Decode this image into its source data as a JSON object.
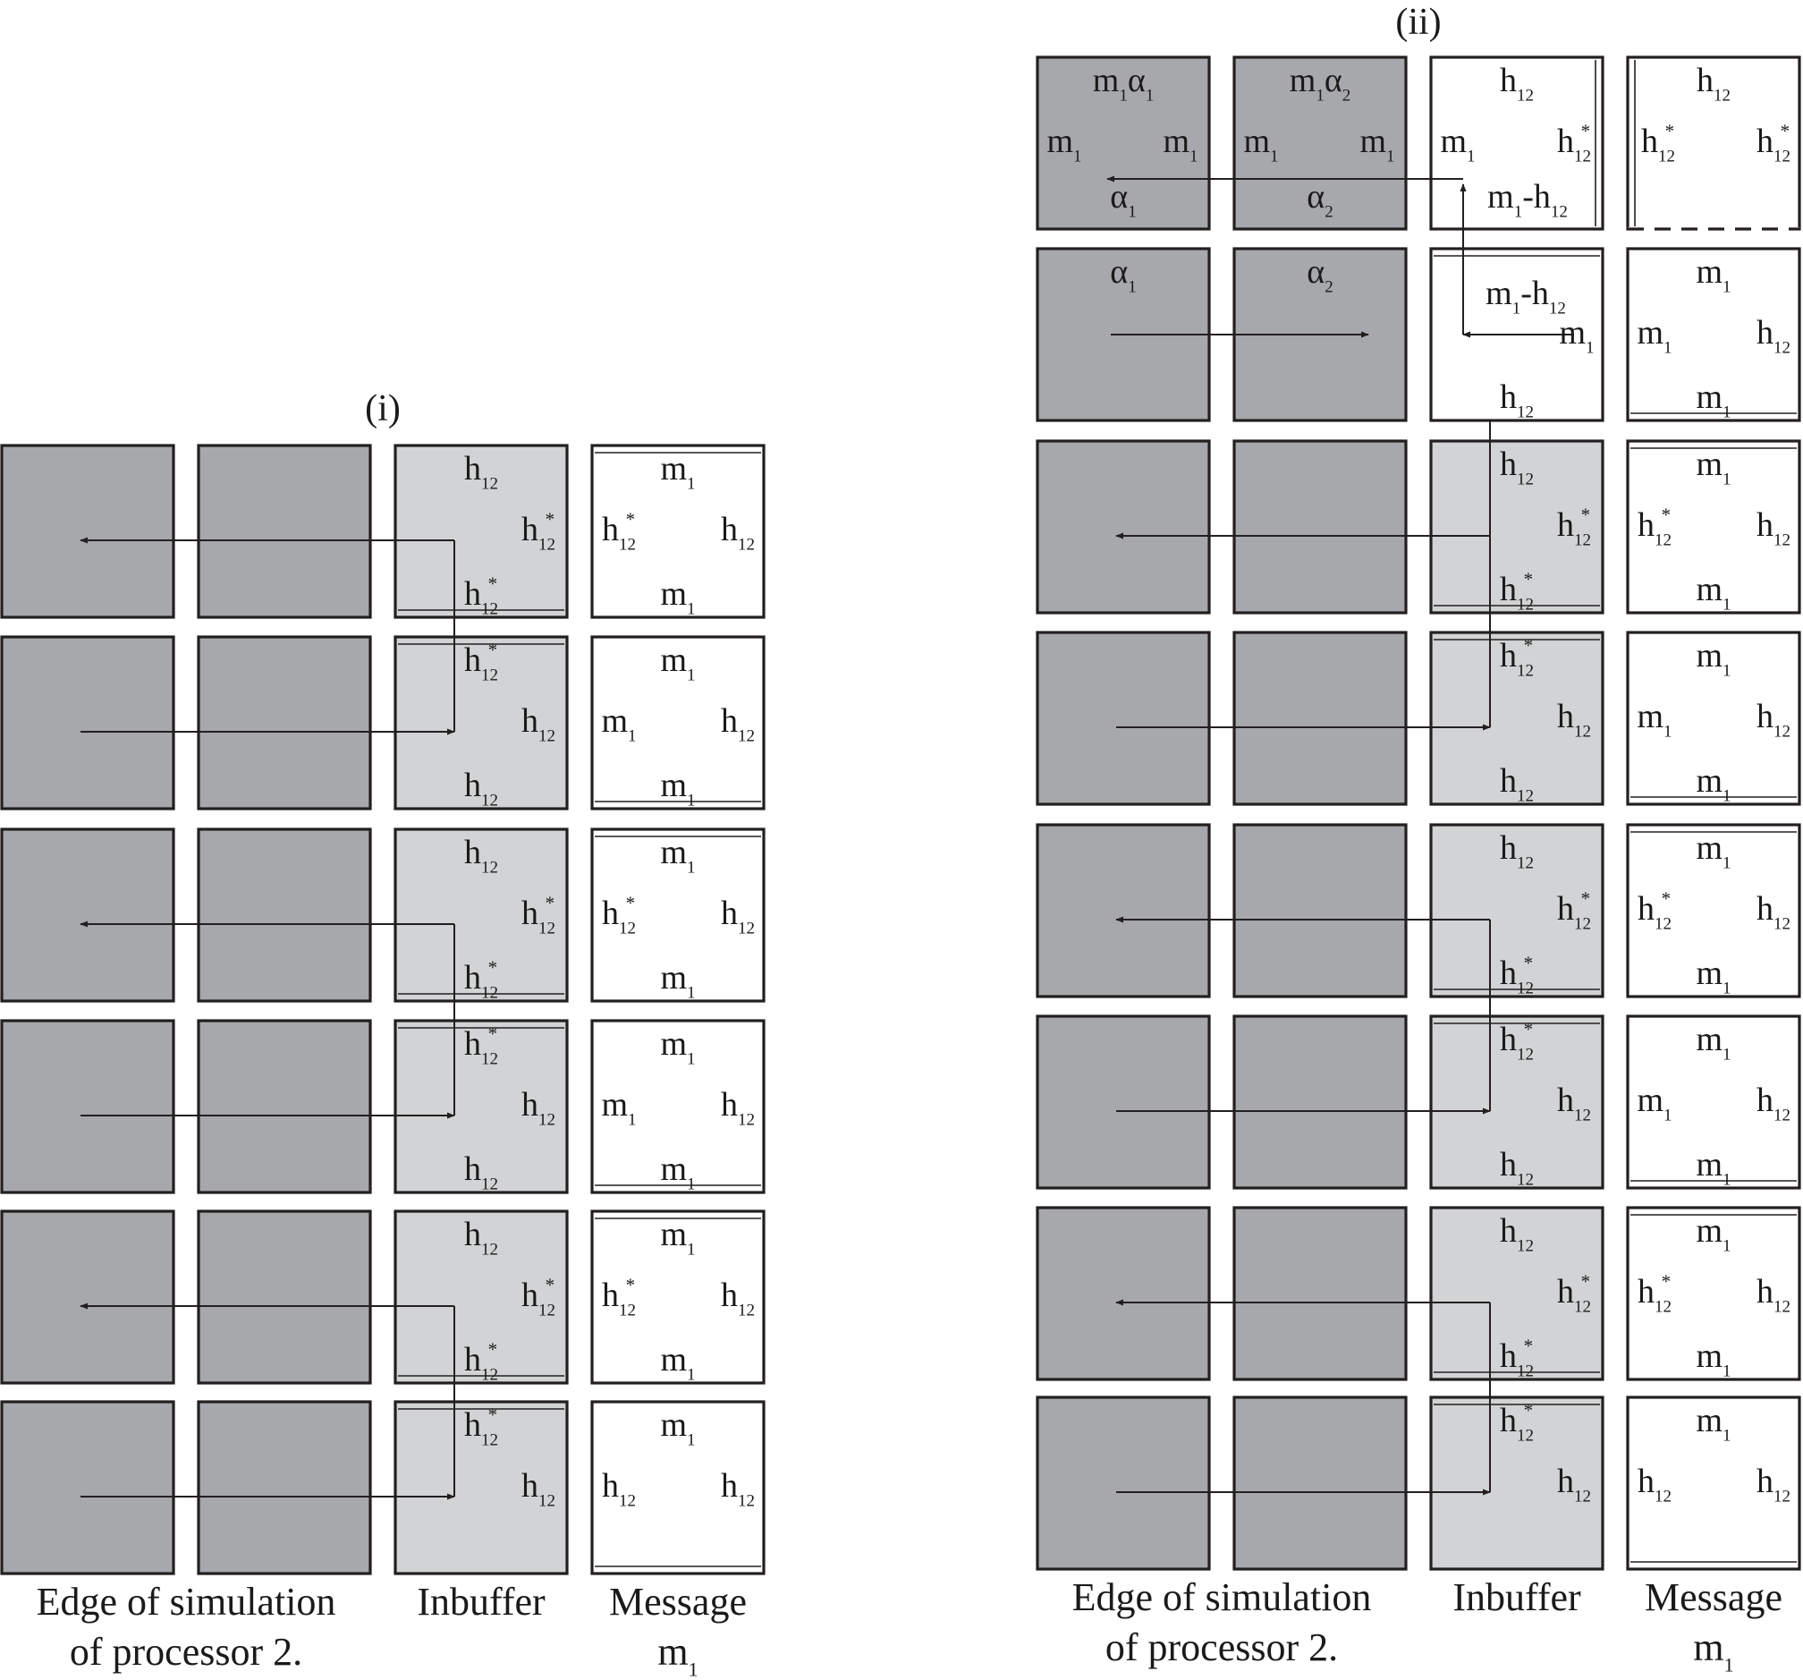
{
  "panel_i": {
    "label": "(i)",
    "rows": [
      {
        "direction": "left",
        "inbuffer": {
          "top": [
            "h",
            "12",
            ""
          ],
          "right": [
            "h",
            "12",
            "*"
          ],
          "bottom": [
            "h",
            "12",
            "*"
          ]
        },
        "message": {
          "top": [
            "m",
            "1",
            ""
          ],
          "left": [
            "h",
            "12",
            "*"
          ],
          "right": [
            "h",
            "12",
            ""
          ],
          "bottom": [
            "m",
            "1",
            ""
          ]
        }
      },
      {
        "direction": "right",
        "inbuffer": {
          "top": [
            "h",
            "12",
            "*"
          ],
          "right": [
            "h",
            "12",
            ""
          ],
          "bottom": [
            "h",
            "12",
            ""
          ]
        },
        "message": {
          "top": [
            "m",
            "1",
            ""
          ],
          "left": [
            "m",
            "1",
            ""
          ],
          "right": [
            "h",
            "12",
            ""
          ],
          "bottom": [
            "m",
            "1",
            ""
          ]
        }
      },
      {
        "direction": "left",
        "inbuffer": {
          "top": [
            "h",
            "12",
            ""
          ],
          "right": [
            "h",
            "12",
            "*"
          ],
          "bottom": [
            "h",
            "12",
            "*"
          ]
        },
        "message": {
          "top": [
            "m",
            "1",
            ""
          ],
          "left": [
            "h",
            "12",
            "*"
          ],
          "right": [
            "h",
            "12",
            ""
          ],
          "bottom": [
            "m",
            "1",
            ""
          ]
        }
      },
      {
        "direction": "right",
        "inbuffer": {
          "top": [
            "h",
            "12",
            "*"
          ],
          "right": [
            "h",
            "12",
            ""
          ],
          "bottom": [
            "h",
            "12",
            ""
          ]
        },
        "message": {
          "top": [
            "m",
            "1",
            ""
          ],
          "left": [
            "m",
            "1",
            ""
          ],
          "right": [
            "h",
            "12",
            ""
          ],
          "bottom": [
            "m",
            "1",
            ""
          ]
        }
      },
      {
        "direction": "left",
        "inbuffer": {
          "top": [
            "h",
            "12",
            ""
          ],
          "right": [
            "h",
            "12",
            "*"
          ],
          "bottom": [
            "h",
            "12",
            "*"
          ]
        },
        "message": {
          "top": [
            "m",
            "1",
            ""
          ],
          "left": [
            "h",
            "12",
            "*"
          ],
          "right": [
            "h",
            "12",
            ""
          ],
          "bottom": [
            "m",
            "1",
            ""
          ]
        }
      },
      {
        "direction": "right",
        "inbuffer": {
          "top": [
            "h",
            "12",
            "*"
          ],
          "right": [
            "h",
            "12",
            ""
          ]
        },
        "message": {
          "top": [
            "m",
            "1",
            ""
          ],
          "left": [
            "h",
            "12",
            ""
          ],
          "right": [
            "h",
            "12",
            ""
          ]
        }
      }
    ],
    "captions": {
      "edge_line1": "Edge of simulation",
      "edge_line2": "of processor 2.",
      "inbuffer": "Inbuffer",
      "message_line1": "Message",
      "message_line2": [
        "m",
        "1"
      ]
    }
  },
  "panel_ii": {
    "label": "(ii)",
    "top_rows": [
      {
        "cells": [
          {
            "top": [
              "m",
              "1",
              "",
              "α",
              "1"
            ],
            "left": [
              "m",
              "1",
              ""
            ],
            "right": [
              "m",
              "1",
              ""
            ],
            "bottom": [
              "α",
              "1",
              ""
            ]
          },
          {
            "top": [
              "m",
              "1",
              "",
              "α",
              "2"
            ],
            "left": [
              "m",
              "1",
              ""
            ],
            "right": [
              "m",
              "1",
              ""
            ],
            "bottom": [
              "α",
              "2",
              ""
            ]
          },
          {
            "top": [
              "h",
              "12",
              ""
            ],
            "left": [
              "m",
              "1",
              ""
            ],
            "right": [
              "h",
              "12",
              "*"
            ],
            "bottom_text": [
              "m",
              "1",
              "-h",
              "12"
            ]
          },
          {
            "top": [
              "h",
              "12",
              ""
            ],
            "left": [
              "h",
              "12",
              "*"
            ],
            "right": [
              "h",
              "12",
              "*"
            ]
          }
        ]
      },
      {
        "cells": [
          {
            "top": [
              "α",
              "1",
              ""
            ]
          },
          {
            "top": [
              "α",
              "2",
              ""
            ]
          },
          {
            "top_text": [
              "m",
              "1",
              "-h",
              "12"
            ],
            "right": [
              "m",
              "1",
              ""
            ],
            "bottom": [
              "h",
              "12",
              ""
            ]
          },
          {
            "top": [
              "m",
              "1",
              ""
            ],
            "left": [
              "m",
              "1",
              ""
            ],
            "right": [
              "h",
              "12",
              ""
            ],
            "bottom": [
              "m",
              "1",
              ""
            ]
          }
        ]
      }
    ],
    "rows": [
      {
        "direction": "left",
        "inbuffer": {
          "top": [
            "h",
            "12",
            ""
          ],
          "right": [
            "h",
            "12",
            "*"
          ],
          "bottom": [
            "h",
            "12",
            "*"
          ]
        },
        "message": {
          "top": [
            "m",
            "1",
            ""
          ],
          "left": [
            "h",
            "12",
            "*"
          ],
          "right": [
            "h",
            "12",
            ""
          ],
          "bottom": [
            "m",
            "1",
            ""
          ]
        }
      },
      {
        "direction": "right",
        "inbuffer": {
          "top": [
            "h",
            "12",
            "*"
          ],
          "right": [
            "h",
            "12",
            ""
          ],
          "bottom": [
            "h",
            "12",
            ""
          ]
        },
        "message": {
          "top": [
            "m",
            "1",
            ""
          ],
          "left": [
            "m",
            "1",
            ""
          ],
          "right": [
            "h",
            "12",
            ""
          ],
          "bottom": [
            "m",
            "1",
            ""
          ]
        }
      },
      {
        "direction": "left",
        "inbuffer": {
          "top": [
            "h",
            "12",
            ""
          ],
          "right": [
            "h",
            "12",
            "*"
          ],
          "bottom": [
            "h",
            "12",
            "*"
          ]
        },
        "message": {
          "top": [
            "m",
            "1",
            ""
          ],
          "left": [
            "h",
            "12",
            "*"
          ],
          "right": [
            "h",
            "12",
            ""
          ],
          "bottom": [
            "m",
            "1",
            ""
          ]
        }
      },
      {
        "direction": "right",
        "inbuffer": {
          "top": [
            "h",
            "12",
            "*"
          ],
          "right": [
            "h",
            "12",
            ""
          ],
          "bottom": [
            "h",
            "12",
            ""
          ]
        },
        "message": {
          "top": [
            "m",
            "1",
            ""
          ],
          "left": [
            "m",
            "1",
            ""
          ],
          "right": [
            "h",
            "12",
            ""
          ],
          "bottom": [
            "m",
            "1",
            ""
          ]
        }
      },
      {
        "direction": "left",
        "inbuffer": {
          "top": [
            "h",
            "12",
            ""
          ],
          "right": [
            "h",
            "12",
            "*"
          ],
          "bottom": [
            "h",
            "12",
            "*"
          ]
        },
        "message": {
          "top": [
            "m",
            "1",
            ""
          ],
          "left": [
            "h",
            "12",
            "*"
          ],
          "right": [
            "h",
            "12",
            ""
          ],
          "bottom": [
            "m",
            "1",
            ""
          ]
        }
      },
      {
        "direction": "right",
        "inbuffer": {
          "top": [
            "h",
            "12",
            "*"
          ],
          "right": [
            "h",
            "12",
            ""
          ]
        },
        "message": {
          "top": [
            "m",
            "1",
            ""
          ],
          "left": [
            "h",
            "12",
            ""
          ],
          "right": [
            "h",
            "12",
            ""
          ]
        }
      }
    ],
    "captions": {
      "edge_line1": "Edge of simulation",
      "edge_line2": "of processor 2.",
      "inbuffer": "Inbuffer",
      "message_line1": "Message",
      "message_line2": [
        "m",
        "1"
      ]
    }
  },
  "colors": {
    "dark_cell": "#a7a8ab",
    "light_cell": "#d1d3d4",
    "white_cell": "#ffffff",
    "stroke": "#231f20"
  }
}
